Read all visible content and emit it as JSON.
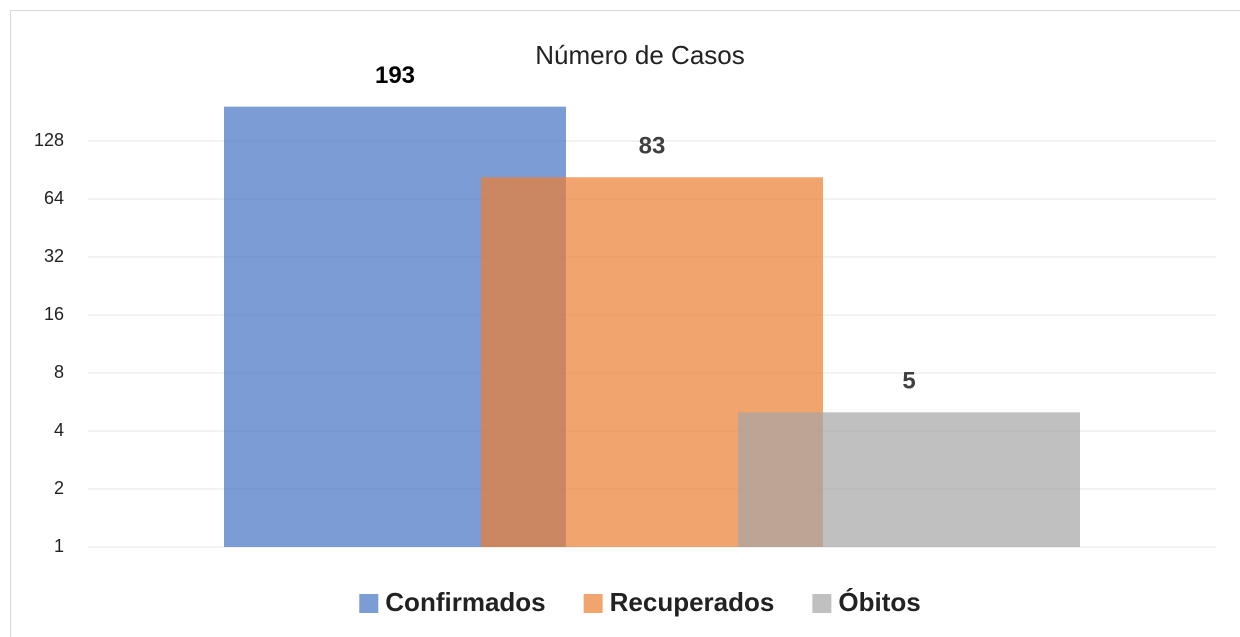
{
  "chart_data": {
    "type": "bar",
    "title": "Número de Casos",
    "categories": [
      null
    ],
    "series": [
      {
        "name": "Confirmados",
        "color": "#4472c4",
        "values": [
          193
        ]
      },
      {
        "name": "Recuperados",
        "color": "#ed7d31",
        "values": [
          83
        ]
      },
      {
        "name": "Óbitos",
        "color": "#a5a5a5",
        "values": [
          5
        ]
      }
    ],
    "log_scale": true,
    "log_base": 2,
    "ylim": [
      1,
      256
    ],
    "yticks": [
      1,
      2,
      4,
      8,
      16,
      32,
      64,
      128
    ],
    "grid": true,
    "legend": "bottom"
  }
}
